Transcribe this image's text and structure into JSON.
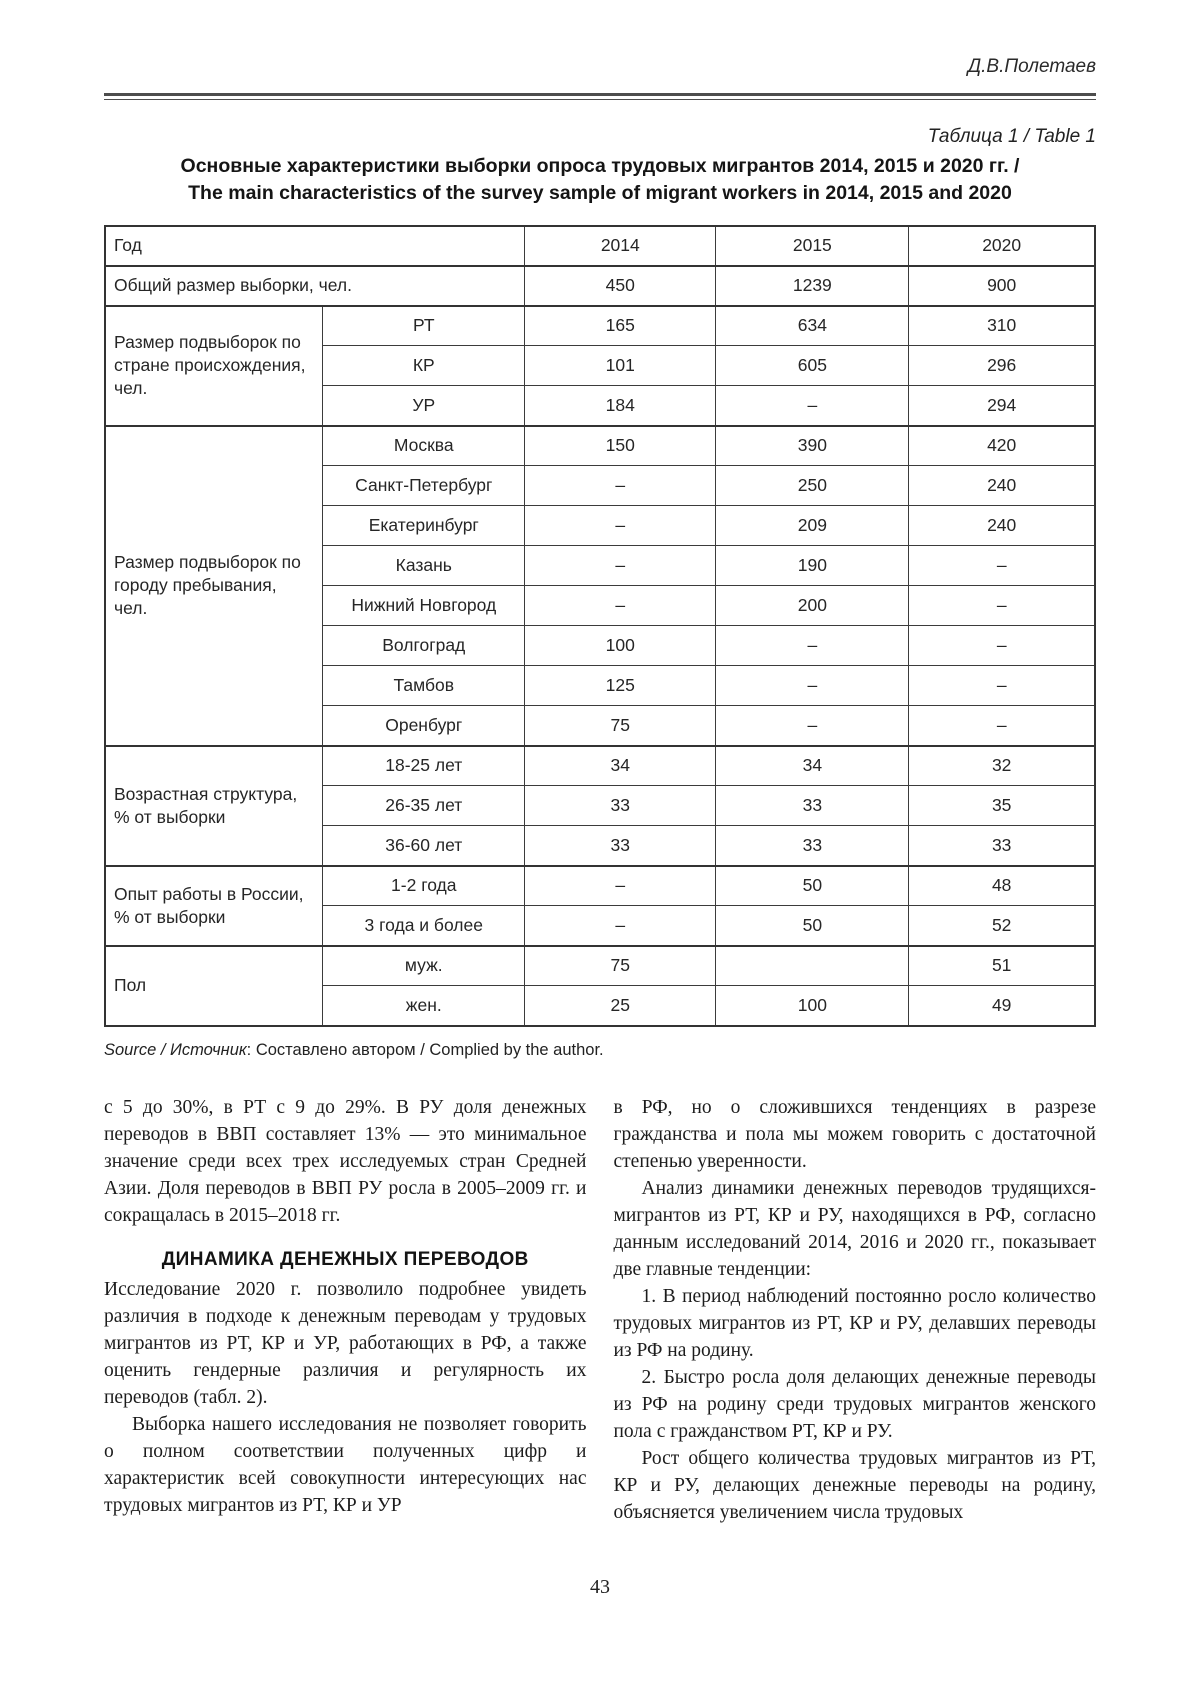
{
  "page": {
    "author": "Д.В.Полетаев",
    "page_number": "43"
  },
  "table_block": {
    "label": "Таблица 1 / Table 1",
    "title_line1": "Основные характеристики выборки опроса трудовых мигрантов 2014, 2015 и 2020 гг. /",
    "title_line2": "The main characteristics of the survey sample of migrant workers in 2014, 2015 and 2020",
    "source_prefix": "Source / Источник",
    "source_rest": ": Составлено автором / Complied by the author."
  },
  "chart_data": {
    "type": "table",
    "title": "Основные характеристики выборки опроса трудовых мигрантов 2014, 2015 и 2020 гг.",
    "columns": [
      "2014",
      "2015",
      "2020"
    ],
    "rows": [
      {
        "group": "",
        "label": "Общий размер выборки, чел.",
        "values": [
          "450",
          "1239",
          "900"
        ]
      },
      {
        "group": "Размер подвыборок по стране происхождения, чел.",
        "label": "РТ",
        "values": [
          "165",
          "634",
          "310"
        ]
      },
      {
        "group": "Размер подвыборок по стране происхождения, чел.",
        "label": "КР",
        "values": [
          "101",
          "605",
          "296"
        ]
      },
      {
        "group": "Размер подвыборок по стране происхождения, чел.",
        "label": "УР",
        "values": [
          "184",
          "–",
          "294"
        ]
      },
      {
        "group": "Размер подвыборок по городу пребывания, чел.",
        "label": "Москва",
        "values": [
          "150",
          "390",
          "420"
        ]
      },
      {
        "group": "Размер подвыборок по городу пребывания, чел.",
        "label": "Санкт-Петербург",
        "values": [
          "–",
          "250",
          "240"
        ]
      },
      {
        "group": "Размер подвыборок по городу пребывания, чел.",
        "label": "Екатеринбург",
        "values": [
          "–",
          "209",
          "240"
        ]
      },
      {
        "group": "Размер подвыборок по городу пребывания, чел.",
        "label": "Казань",
        "values": [
          "–",
          "190",
          "–"
        ]
      },
      {
        "group": "Размер подвыборок по городу пребывания, чел.",
        "label": "Нижний Новгород",
        "values": [
          "–",
          "200",
          "–"
        ]
      },
      {
        "group": "Размер подвыборок по городу пребывания, чел.",
        "label": "Волгоград",
        "values": [
          "100",
          "–",
          "–"
        ]
      },
      {
        "group": "Размер подвыборок по городу пребывания, чел.",
        "label": "Тамбов",
        "values": [
          "125",
          "–",
          "–"
        ]
      },
      {
        "group": "Размер подвыборок по городу пребывания, чел.",
        "label": "Оренбург",
        "values": [
          "75",
          "–",
          "–"
        ]
      },
      {
        "group": "Возрастная структура, % от выборки",
        "label": "18-25 лет",
        "values": [
          "34",
          "34",
          "32"
        ]
      },
      {
        "group": "Возрастная структура, % от выборки",
        "label": "26-35 лет",
        "values": [
          "33",
          "33",
          "35"
        ]
      },
      {
        "group": "Возрастная структура, % от выборки",
        "label": "36-60 лет",
        "values": [
          "33",
          "33",
          "33"
        ]
      },
      {
        "group": "Опыт работы в России, % от выборки",
        "label": "1-2 года",
        "values": [
          "–",
          "50",
          "48"
        ]
      },
      {
        "group": "Опыт работы в России, % от выборки",
        "label": "3 года и более",
        "values": [
          "–",
          "50",
          "52"
        ]
      },
      {
        "group": "Пол",
        "label": "муж.",
        "values": [
          "75",
          "",
          "51"
        ]
      },
      {
        "group": "Пол",
        "label": "жен.",
        "values": [
          "25",
          "100",
          "49"
        ]
      }
    ]
  },
  "table": {
    "rows": [
      {
        "label": "Год",
        "full": true,
        "values": [
          "2014",
          "2015",
          "2020"
        ]
      },
      {
        "label": "Общий размер выборки, чел.",
        "full": true,
        "values": [
          "450",
          "1239",
          "900"
        ],
        "section": true
      },
      {
        "group": "Размер подвыборок по стране происхождения, чел.",
        "groupRows": 3,
        "label": "РТ",
        "values": [
          "165",
          "634",
          "310"
        ],
        "section": true
      },
      {
        "label": "КР",
        "values": [
          "101",
          "605",
          "296"
        ]
      },
      {
        "label": "УР",
        "values": [
          "184",
          "–",
          "294"
        ]
      },
      {
        "group": "Размер подвыборок по городу пребывания, чел.",
        "groupRows": 8,
        "label": "Москва",
        "values": [
          "150",
          "390",
          "420"
        ],
        "section": true
      },
      {
        "label": "Санкт-Петербург",
        "values": [
          "–",
          "250",
          "240"
        ]
      },
      {
        "label": "Екатеринбург",
        "values": [
          "–",
          "209",
          "240"
        ]
      },
      {
        "label": "Казань",
        "values": [
          "–",
          "190",
          "–"
        ]
      },
      {
        "label": "Нижний Новгород",
        "values": [
          "–",
          "200",
          "–"
        ]
      },
      {
        "label": "Волгоград",
        "values": [
          "100",
          "–",
          "–"
        ]
      },
      {
        "label": "Тамбов",
        "values": [
          "125",
          "–",
          "–"
        ]
      },
      {
        "label": "Оренбург",
        "values": [
          "75",
          "–",
          "–"
        ]
      },
      {
        "group": "Возрастная структура, % от выборки",
        "groupRows": 3,
        "label": "18-25 лет",
        "values": [
          "34",
          "34",
          "32"
        ],
        "section": true
      },
      {
        "label": "26-35 лет",
        "values": [
          "33",
          "33",
          "35"
        ]
      },
      {
        "label": "36-60 лет",
        "values": [
          "33",
          "33",
          "33"
        ]
      },
      {
        "group": "Опыт работы в России, % от выборки",
        "groupRows": 2,
        "label": "1-2 года",
        "values": [
          "–",
          "50",
          "48"
        ],
        "section": true
      },
      {
        "label": "3 года и более",
        "values": [
          "–",
          "50",
          "52"
        ]
      },
      {
        "group": "Пол",
        "groupRows": 2,
        "label": "муж.",
        "values": [
          "75",
          "",
          "51"
        ],
        "section": true
      },
      {
        "label": "жен.",
        "values": [
          "25",
          "100",
          "49"
        ]
      }
    ]
  },
  "body": {
    "left": [
      {
        "type": "p",
        "indent": false,
        "text": "с 5 до 30%, в РТ с 9 до 29%. В РУ доля денежных переводов в ВВП составляет 13% — это минимальное значение среди всех трех исследуемых стран Средней Азии. Доля переводов в ВВП РУ росла в 2005–2009 гг. и сокращалась в 2015–2018 гг."
      },
      {
        "type": "h",
        "text": "ДИНАМИКА ДЕНЕЖНЫХ ПЕРЕВОДОВ"
      },
      {
        "type": "p",
        "indent": false,
        "text": "Исследование 2020 г. позволило подробнее увидеть различия в подходе к денежным переводам у трудовых мигрантов из РТ, КР и УР, работающих в РФ, а также оценить гендерные различия и регулярность их переводов (табл. 2)."
      },
      {
        "type": "p",
        "indent": true,
        "text": "Выборка нашего исследования не позволяет говорить о полном соответствии полученных цифр и характеристик всей совокупности интересующих нас трудовых мигрантов из РТ, КР и УР"
      }
    ],
    "right": [
      {
        "type": "p",
        "indent": false,
        "text": "в РФ, но о сложившихся тенденциях в разрезе гражданства и пола мы можем говорить с достаточной степенью уверенности."
      },
      {
        "type": "p",
        "indent": true,
        "text": "Анализ динамики денежных переводов трудящихся-мигрантов из РТ, КР и РУ, находящихся в РФ, согласно данным исследований 2014, 2016 и 2020 гг., показывает две главные тенденции:"
      },
      {
        "type": "p",
        "indent": true,
        "text": "1. В период наблюдений постоянно росло количество трудовых мигрантов из РТ, КР и РУ, делавших переводы из РФ на родину."
      },
      {
        "type": "p",
        "indent": true,
        "text": "2. Быстро росла доля делающих денежные переводы из РФ на родину среди трудовых мигрантов женского пола с гражданством РТ, КР и РУ."
      },
      {
        "type": "p",
        "indent": true,
        "text": "Рост общего количества трудовых мигрантов из РТ, КР и РУ, делающих денежные переводы на родину, объясняется увеличением числа трудовых"
      }
    ]
  }
}
